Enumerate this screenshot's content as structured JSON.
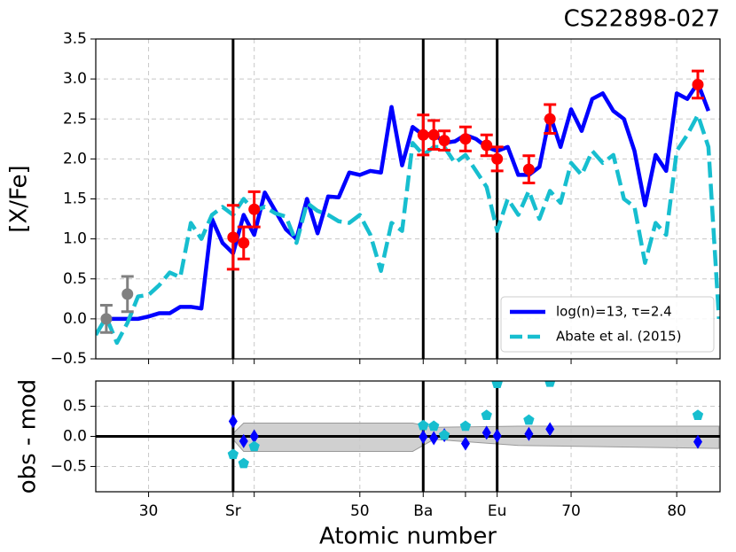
{
  "chart_data": [
    {
      "type": "line",
      "title": "CS22898-027",
      "y_label": "[X/Fe]",
      "xlim": [
        25,
        84.1
      ],
      "ylim": [
        -0.5,
        3.5
      ],
      "yticks": [
        {
          "value": -0.5,
          "label": "−0.5"
        },
        {
          "value": 0,
          "label": "0.0"
        },
        {
          "value": 0.5,
          "label": "0.5"
        },
        {
          "value": 1,
          "label": "1.0"
        },
        {
          "value": 1.5,
          "label": "1.5"
        },
        {
          "value": 2,
          "label": "2.0"
        },
        {
          "value": 2.5,
          "label": "2.5"
        },
        {
          "value": 3,
          "label": "3.0"
        },
        {
          "value": 3.5,
          "label": "3.5"
        }
      ],
      "grid": true,
      "vlines": [
        38,
        56,
        63
      ],
      "legend": "lower right",
      "series": [
        {
          "name": "log(n)=13, τ=2.4",
          "color": "#0000ff",
          "style": "solid",
          "x": [
            26,
            27,
            28,
            29,
            30,
            31,
            32,
            33,
            34,
            35,
            36,
            37,
            38,
            39,
            40,
            41,
            42,
            43,
            44,
            45,
            46,
            47,
            48,
            49,
            50,
            51,
            52,
            53,
            54,
            55,
            56,
            57,
            58,
            59,
            60,
            61,
            62,
            63,
            64,
            65,
            66,
            67,
            68,
            69,
            70,
            71,
            72,
            73,
            74,
            75,
            76,
            77,
            78,
            79,
            80,
            81,
            82,
            83
          ],
          "values": [
            0.0,
            0.0,
            0.0,
            0.0,
            0.03,
            0.07,
            0.07,
            0.15,
            0.15,
            0.13,
            1.25,
            0.95,
            0.82,
            1.3,
            1.05,
            1.58,
            1.35,
            1.12,
            1.0,
            1.5,
            1.07,
            1.53,
            1.52,
            1.83,
            1.8,
            1.85,
            1.83,
            2.65,
            1.92,
            2.4,
            2.3,
            2.32,
            2.2,
            2.22,
            2.3,
            2.25,
            2.15,
            2.1,
            2.15,
            1.8,
            1.8,
            1.9,
            2.55,
            2.15,
            2.62,
            2.35,
            2.75,
            2.82,
            2.6,
            2.5,
            2.1,
            1.42,
            2.05,
            1.85,
            2.82,
            2.75,
            2.95,
            2.6
          ]
        },
        {
          "name": "Abate et al. (2015)",
          "color": "#17becf",
          "style": "dashed",
          "x": [
            25,
            26,
            27,
            28,
            29,
            30,
            31,
            32,
            33,
            34,
            35,
            36,
            37,
            38,
            39,
            40,
            41,
            42,
            43,
            44,
            45,
            46,
            47,
            48,
            49,
            50,
            51,
            52,
            53,
            54,
            55,
            56,
            57,
            58,
            59,
            60,
            61,
            62,
            63,
            64,
            65,
            66,
            67,
            68,
            69,
            70,
            71,
            72,
            73,
            74,
            75,
            76,
            77,
            78,
            79,
            80,
            81,
            82,
            83,
            84
          ],
          "values": [
            -0.2,
            0.02,
            -0.3,
            -0.05,
            0.28,
            0.3,
            0.42,
            0.58,
            0.52,
            1.2,
            1.0,
            1.3,
            1.4,
            1.3,
            1.5,
            1.35,
            1.4,
            1.32,
            1.28,
            0.95,
            1.45,
            1.35,
            1.3,
            1.22,
            1.2,
            1.3,
            1.05,
            0.6,
            1.2,
            1.1,
            2.2,
            2.05,
            2.15,
            2.15,
            1.95,
            2.05,
            1.85,
            1.65,
            1.1,
            1.5,
            1.3,
            1.6,
            1.25,
            1.6,
            1.45,
            1.95,
            1.8,
            2.1,
            1.95,
            2.05,
            1.5,
            1.4,
            0.7,
            1.2,
            1.05,
            2.1,
            2.3,
            2.55,
            2.15,
            0.0
          ]
        }
      ],
      "points": [
        {
          "color": "#ff0000",
          "x": [
            38,
            39,
            40,
            56,
            57,
            58,
            60,
            62,
            63,
            66,
            68,
            82
          ],
          "values": [
            1.02,
            0.95,
            1.37,
            2.3,
            2.3,
            2.23,
            2.25,
            2.17,
            2.0,
            1.87,
            2.5,
            2.93
          ],
          "errors": [
            0.4,
            0.2,
            0.22,
            0.25,
            0.18,
            0.12,
            0.15,
            0.13,
            0.15,
            0.17,
            0.18,
            0.17
          ]
        },
        {
          "color": "#808080",
          "x": [
            26,
            28
          ],
          "values": [
            0.0,
            0.31
          ],
          "errors": [
            0.17,
            0.22
          ]
        }
      ]
    },
    {
      "type": "scatter",
      "y_label": "obs - mod",
      "x_label": "Atomic number",
      "xlim": [
        25,
        84.1
      ],
      "ylim": [
        -0.92,
        0.92
      ],
      "xticks": [
        30,
        {
          "value": 38,
          "label": "Sr"
        },
        {
          "value": 40,
          "label": null
        },
        50,
        {
          "value": 56,
          "label": "Ba"
        },
        {
          "value": 60,
          "label": null
        },
        {
          "value": 63,
          "label": "Eu"
        },
        70,
        80
      ],
      "yticks": [
        {
          "value": -0.5,
          "label": "−0.5"
        },
        {
          "value": 0,
          "label": "0.0"
        },
        {
          "value": 0.5,
          "label": "0.5"
        }
      ],
      "grid": true,
      "vlines": [
        38,
        56,
        63
      ],
      "hline": 0,
      "band": {
        "color": "#c8c8c8",
        "x": [
          38,
          39,
          55,
          57,
          65,
          84
        ],
        "upper": [
          0.05,
          0.22,
          0.22,
          0.15,
          0.17,
          0.17
        ],
        "lower": [
          -0.05,
          -0.25,
          -0.25,
          -0.05,
          -0.15,
          -0.2
        ]
      },
      "series": [
        {
          "color": "#0000ff",
          "marker": "diamond",
          "x": [
            38,
            39,
            40,
            56,
            57,
            58,
            60,
            62,
            63,
            66,
            68,
            82
          ],
          "values": [
            0.25,
            -0.08,
            0.0,
            -0.01,
            -0.03,
            0.02,
            -0.12,
            0.06,
            0.01,
            0.04,
            0.12,
            -0.09
          ]
        },
        {
          "color": "#17becf",
          "marker": "pentagon",
          "x": [
            38,
            39,
            40,
            56,
            57,
            58,
            60,
            62,
            63,
            66,
            68,
            82
          ],
          "values": [
            -0.3,
            -0.45,
            -0.17,
            0.18,
            0.17,
            0.02,
            0.17,
            0.35,
            0.88,
            0.27,
            0.9,
            0.35
          ]
        }
      ]
    }
  ]
}
